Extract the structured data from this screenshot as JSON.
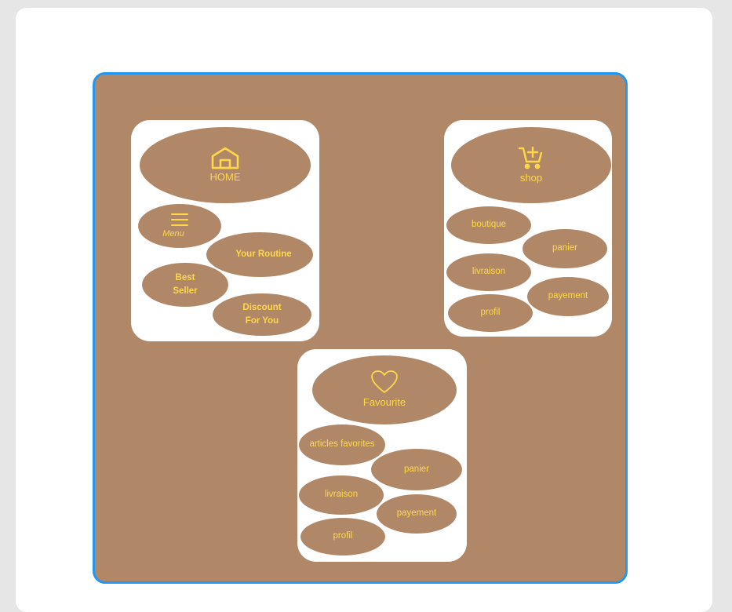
{
  "colors": {
    "board": "#b08867",
    "accent": "#ffd84a",
    "border": "#2196f3"
  },
  "home_card": {
    "header": {
      "label": "HOME",
      "icon": "house-icon"
    },
    "menu": {
      "label": "Menu",
      "icon": "hamburger-menu-icon"
    },
    "your_routine": "Your Routine",
    "best_seller": [
      "Best",
      "Seller"
    ],
    "discount": [
      "Discount",
      "For You"
    ]
  },
  "shop_card": {
    "header": {
      "label": "shop",
      "icon": "cart-add-icon"
    },
    "items": [
      "boutique",
      "panier",
      "livraison",
      "payement",
      "profil"
    ]
  },
  "favourite_card": {
    "header": {
      "label": "Favourite",
      "icon": "heart-icon"
    },
    "items": [
      "articles favorites",
      "panier",
      "livraison",
      "payement",
      "profil"
    ]
  }
}
